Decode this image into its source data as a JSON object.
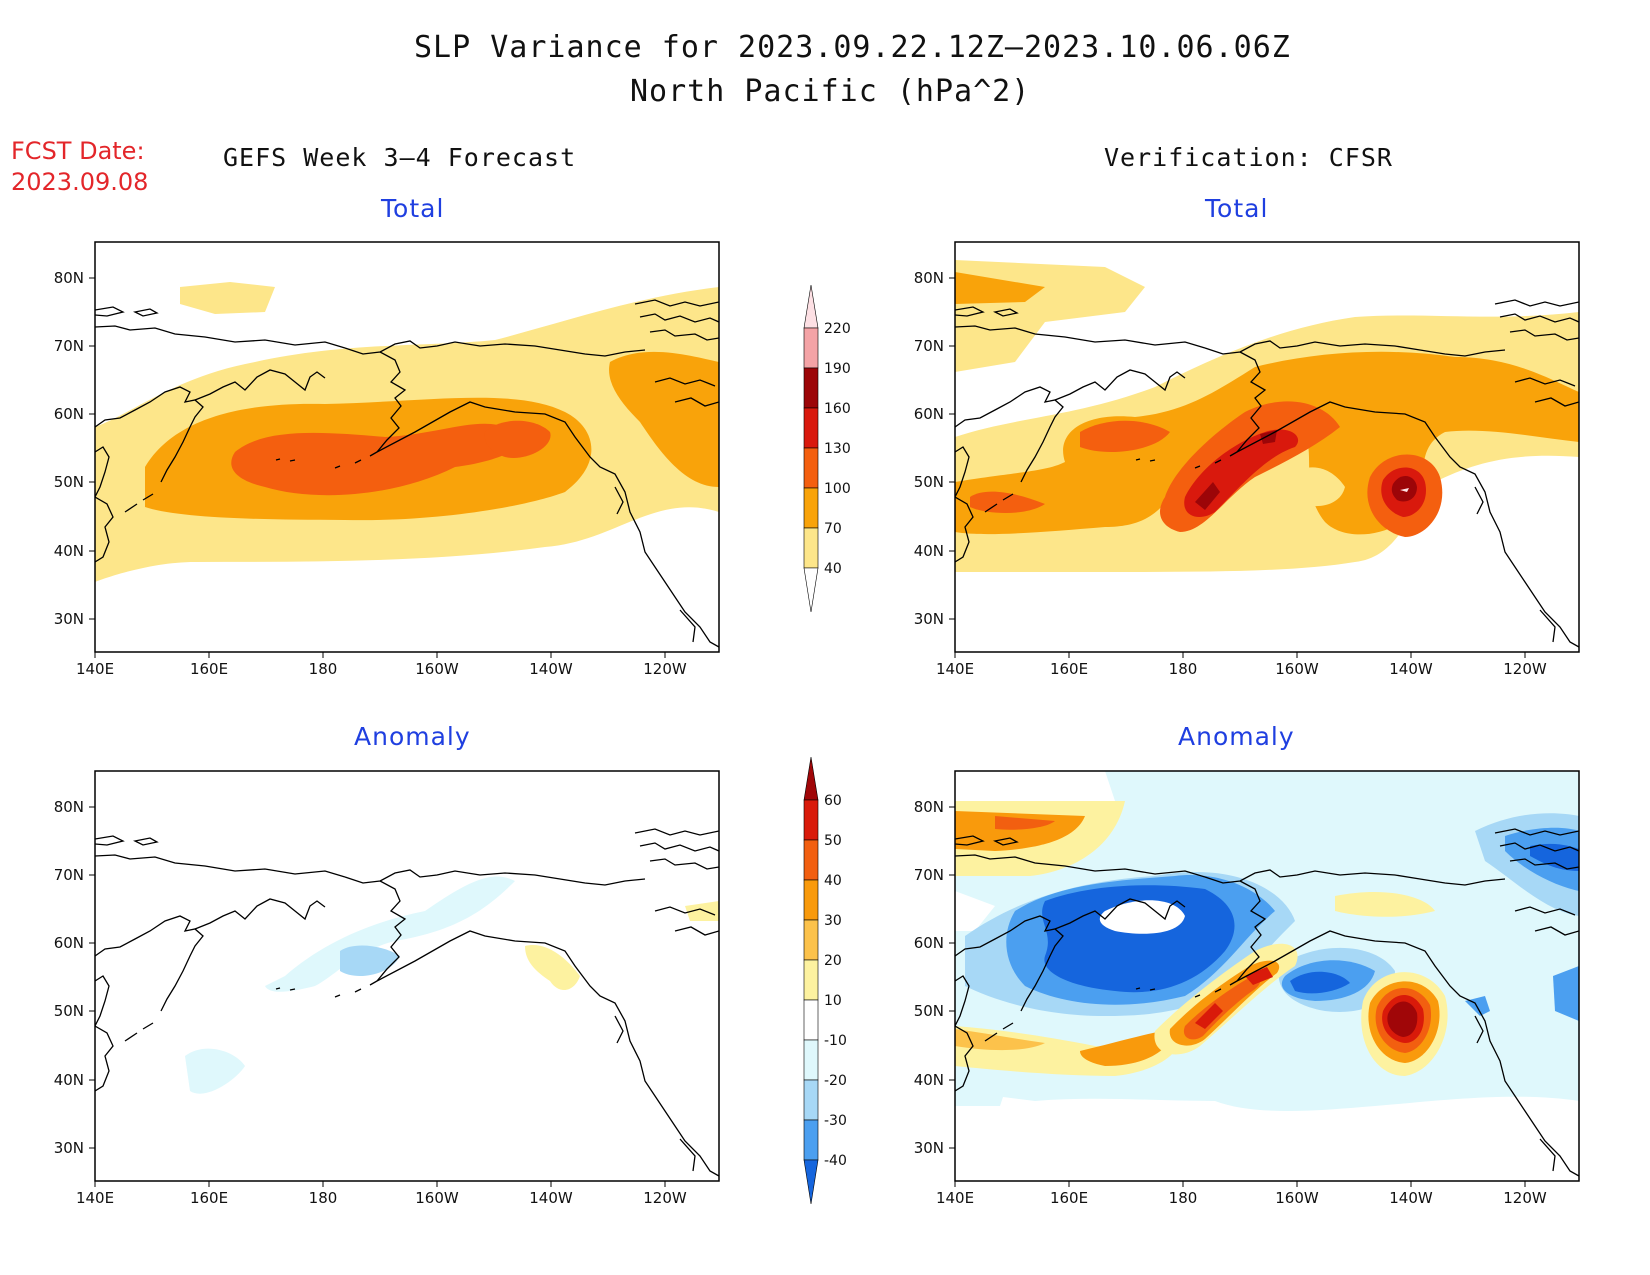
{
  "title_line1": "SLP Variance for 2023.09.22.12Z–2023.10.06.06Z",
  "title_line2": "North Pacific (hPa^2)",
  "fcst_label": "FCST Date:",
  "fcst_date": "2023.09.08",
  "left_heading": "GEFS Week 3–4 Forecast",
  "right_heading": "Verification: CFSR",
  "panel_titles": {
    "top_left": "Total",
    "top_right": "Total",
    "bottom_left": "Anomaly",
    "bottom_right": "Anomaly"
  },
  "lat_labels": [
    "80N",
    "70N",
    "60N",
    "50N",
    "40N",
    "30N"
  ],
  "lon_labels": [
    "140E",
    "160E",
    "180",
    "160W",
    "140W",
    "120W"
  ],
  "colors": {
    "total": [
      "#fde68a",
      "#f9a30a",
      "#f45f0f",
      "#d9190d",
      "#9c0508",
      "#f4a3a6",
      "#fde0e4"
    ],
    "anom_pos": [
      "#fdf2a0",
      "#fcc24b",
      "#f99a0c",
      "#f25f10",
      "#d91a0a",
      "#a00608"
    ],
    "anom_neg": [
      "#dff8fc",
      "#a7d8f6",
      "#4b9ff0",
      "#1565dd"
    ],
    "title_blue": "#1f3fe0",
    "fcst_red": "#e3262a"
  },
  "colorbar_total": [
    "220",
    "190",
    "160",
    "130",
    "100",
    "70",
    "40"
  ],
  "colorbar_anom": [
    "60",
    "50",
    "40",
    "30",
    "20",
    "10",
    "-10",
    "-20",
    "-30",
    "-40"
  ]
}
